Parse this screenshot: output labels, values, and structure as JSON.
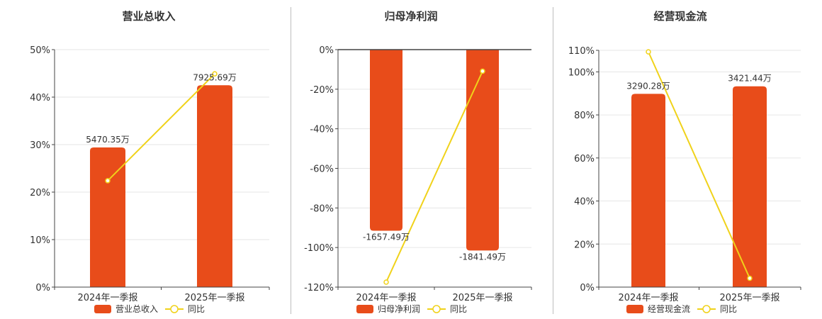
{
  "colors": {
    "bar": "#e84c1a",
    "line": "#f0d21a",
    "axis": "#444444",
    "grid": "#e6e6e6",
    "text": "#333333"
  },
  "chart_data": [
    {
      "type": "bar",
      "title": "营业总收入",
      "categories": [
        "2024年一季报",
        "2025年一季报"
      ],
      "bar_values": [
        29.4,
        42.5
      ],
      "bar_labels": [
        "5470.35万",
        "7925.69万"
      ],
      "line_values": [
        22.4,
        44.9
      ],
      "ylim": [
        0,
        50
      ],
      "yticks": [
        0,
        10,
        20,
        30,
        40,
        50
      ],
      "ytick_labels": [
        "0%",
        "10%",
        "20%",
        "30%",
        "40%",
        "50%"
      ],
      "legend": [
        "营业总收入",
        "同比"
      ],
      "grid": true,
      "legend_position": "bottom"
    },
    {
      "type": "bar",
      "title": "归母净利润",
      "categories": [
        "2024年一季报",
        "2025年一季报"
      ],
      "bar_values": [
        -91.5,
        -101.5
      ],
      "bar_labels": [
        "-1657.49万",
        "-1841.49万"
      ],
      "line_values": [
        -117.5,
        -10.9
      ],
      "ylim": [
        -120,
        0
      ],
      "yticks": [
        0,
        -20,
        -40,
        -60,
        -80,
        -100,
        -120
      ],
      "ytick_labels": [
        "0%",
        "-20%",
        "-40%",
        "-60%",
        "-80%",
        "-100%",
        "-120%"
      ],
      "legend": [
        "归母净利润",
        "同比"
      ],
      "grid": true,
      "legend_position": "bottom"
    },
    {
      "type": "bar",
      "title": "经营现金流",
      "categories": [
        "2024年一季报",
        "2025年一季报"
      ],
      "bar_values": [
        89.8,
        93.3
      ],
      "bar_labels": [
        "3290.28万",
        "3421.44万"
      ],
      "line_values": [
        109.3,
        4.1
      ],
      "ylim": [
        0,
        110
      ],
      "yticks": [
        0,
        20,
        40,
        60,
        80,
        100,
        110
      ],
      "ytick_labels": [
        "0%",
        "20%",
        "40%",
        "60%",
        "80%",
        "100%",
        "110%"
      ],
      "legend": [
        "经营现金流",
        "同比"
      ],
      "grid": true,
      "legend_position": "bottom"
    }
  ]
}
